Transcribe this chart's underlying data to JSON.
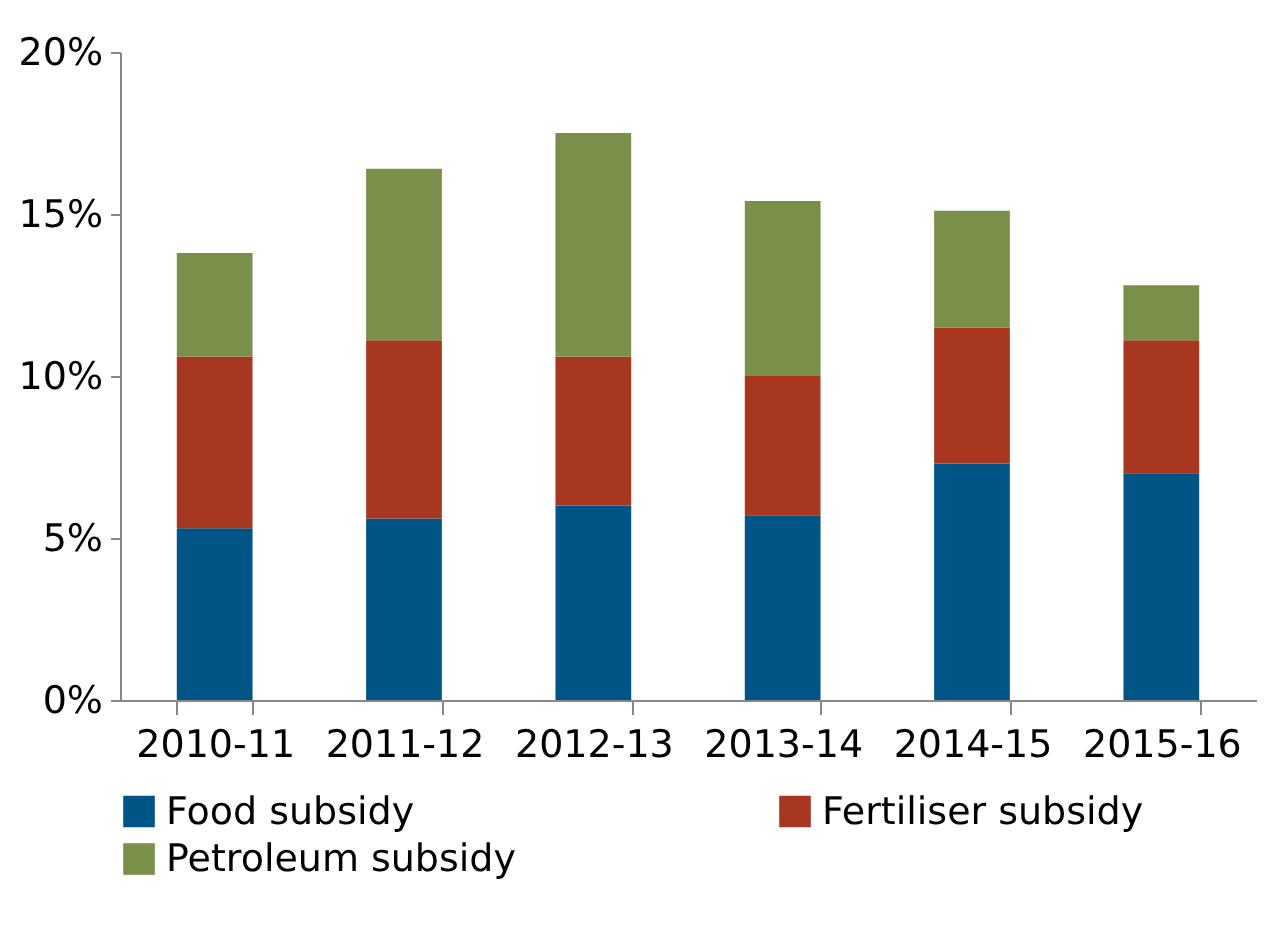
{
  "chart_data": {
    "type": "bar",
    "stacked": true,
    "categories": [
      "2010-11",
      "2011-12",
      "2012-13",
      "2013-14",
      "2014-15",
      "2015-16"
    ],
    "series": [
      {
        "name": "Food subsidy",
        "color": "#005587",
        "values": [
          5.3,
          5.6,
          6.0,
          5.7,
          7.3,
          7.0
        ]
      },
      {
        "name": "Fertiliser subsidy",
        "color": "#a83722",
        "values": [
          5.3,
          5.5,
          4.6,
          4.3,
          4.2,
          4.1
        ]
      },
      {
        "name": "Petroleum subsidy",
        "color": "#7a8f4a",
        "values": [
          3.2,
          5.3,
          6.9,
          5.4,
          3.6,
          1.7
        ]
      }
    ],
    "ylim": [
      0,
      20
    ],
    "yticks": [
      {
        "value": 0,
        "label": "0%"
      },
      {
        "value": 5,
        "label": "5%"
      },
      {
        "value": 10,
        "label": "10%"
      },
      {
        "value": 15,
        "label": "15%"
      },
      {
        "value": 20,
        "label": "20%"
      }
    ],
    "grid": false,
    "legend": "bottom"
  }
}
